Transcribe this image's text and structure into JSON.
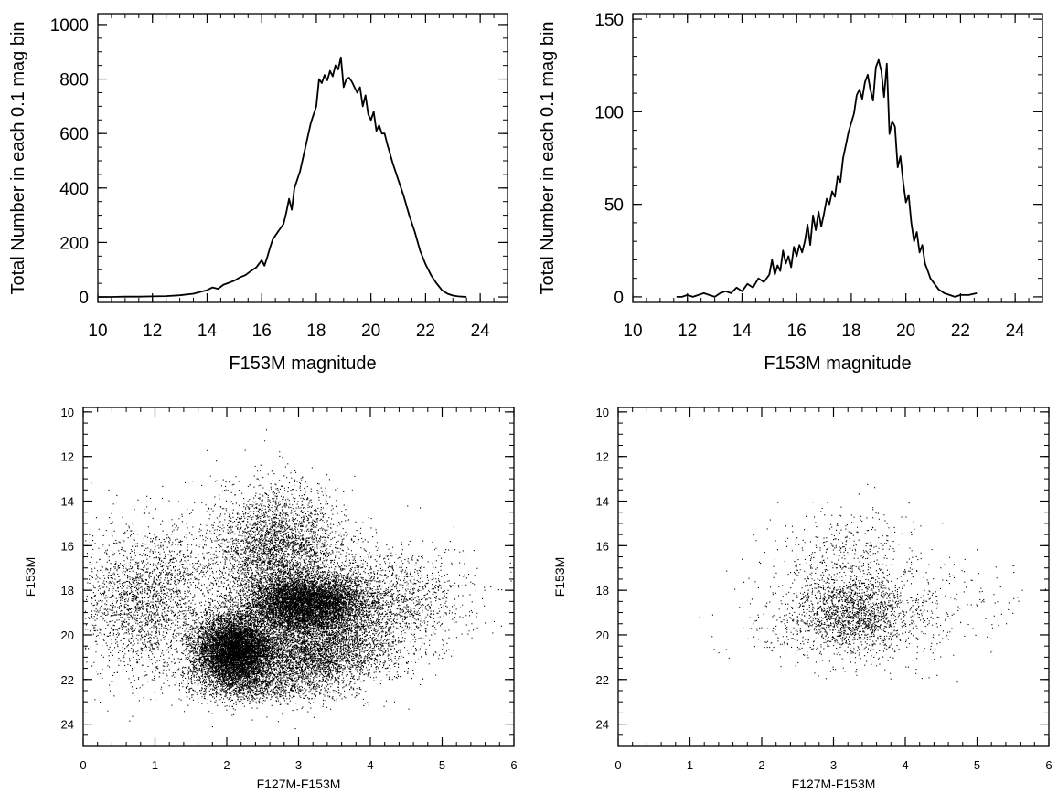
{
  "chart_data": [
    {
      "id": "hist-left",
      "type": "line",
      "title": "",
      "xlabel": "F153M magnitude",
      "ylabel": "Total Number in each 0.1 mag bin",
      "xlim": [
        10,
        25
      ],
      "ylim": [
        -20,
        1040
      ],
      "xticks": [
        10,
        12,
        14,
        16,
        18,
        20,
        22,
        24
      ],
      "yticks": [
        0,
        200,
        400,
        600,
        800,
        1000
      ],
      "x_minor_step": 0.5,
      "y_minor_step": 50,
      "grid": false,
      "series": [
        {
          "points": [
            [
              10,
              0
            ],
            [
              10.5,
              0
            ],
            [
              11,
              1
            ],
            [
              11.5,
              1
            ],
            [
              12,
              2
            ],
            [
              12.5,
              3
            ],
            [
              13,
              6
            ],
            [
              13.5,
              12
            ],
            [
              13.8,
              20
            ],
            [
              14.0,
              25
            ],
            [
              14.2,
              35
            ],
            [
              14.4,
              30
            ],
            [
              14.6,
              45
            ],
            [
              14.8,
              52
            ],
            [
              15.0,
              60
            ],
            [
              15.2,
              72
            ],
            [
              15.4,
              80
            ],
            [
              15.6,
              95
            ],
            [
              15.8,
              108
            ],
            [
              16.0,
              135
            ],
            [
              16.1,
              115
            ],
            [
              16.2,
              145
            ],
            [
              16.3,
              180
            ],
            [
              16.4,
              210
            ],
            [
              16.6,
              240
            ],
            [
              16.8,
              268
            ],
            [
              16.9,
              310
            ],
            [
              17.0,
              360
            ],
            [
              17.1,
              320
            ],
            [
              17.2,
              400
            ],
            [
              17.4,
              460
            ],
            [
              17.6,
              550
            ],
            [
              17.8,
              640
            ],
            [
              18.0,
              700
            ],
            [
              18.1,
              800
            ],
            [
              18.2,
              785
            ],
            [
              18.3,
              815
            ],
            [
              18.4,
              795
            ],
            [
              18.5,
              830
            ],
            [
              18.6,
              810
            ],
            [
              18.7,
              850
            ],
            [
              18.8,
              835
            ],
            [
              18.9,
              880
            ],
            [
              19.0,
              770
            ],
            [
              19.1,
              800
            ],
            [
              19.2,
              805
            ],
            [
              19.3,
              790
            ],
            [
              19.4,
              770
            ],
            [
              19.5,
              750
            ],
            [
              19.6,
              770
            ],
            [
              19.7,
              700
            ],
            [
              19.8,
              740
            ],
            [
              19.9,
              670
            ],
            [
              20.0,
              650
            ],
            [
              20.1,
              680
            ],
            [
              20.2,
              610
            ],
            [
              20.3,
              630
            ],
            [
              20.4,
              600
            ],
            [
              20.5,
              600
            ],
            [
              20.6,
              560
            ],
            [
              20.8,
              490
            ],
            [
              21.0,
              430
            ],
            [
              21.2,
              370
            ],
            [
              21.4,
              300
            ],
            [
              21.6,
              240
            ],
            [
              21.8,
              170
            ],
            [
              22.0,
              120
            ],
            [
              22.2,
              80
            ],
            [
              22.4,
              50
            ],
            [
              22.6,
              25
            ],
            [
              22.8,
              12
            ],
            [
              23.0,
              5
            ],
            [
              23.2,
              2
            ],
            [
              23.5,
              0
            ]
          ]
        }
      ]
    },
    {
      "id": "hist-right",
      "type": "line",
      "title": "",
      "xlabel": "F153M magnitude",
      "ylabel": "Total Number in each 0.1 mag bin",
      "xlim": [
        10,
        25
      ],
      "ylim": [
        -3,
        153
      ],
      "xticks": [
        10,
        12,
        14,
        16,
        18,
        20,
        22,
        24
      ],
      "yticks": [
        0,
        50,
        100,
        150
      ],
      "x_minor_step": 0.5,
      "y_minor_step": 10,
      "grid": false,
      "series": [
        {
          "points": [
            [
              11.6,
              0
            ],
            [
              11.8,
              0
            ],
            [
              12.0,
              1
            ],
            [
              12.2,
              0
            ],
            [
              12.4,
              1
            ],
            [
              12.6,
              2
            ],
            [
              12.8,
              1
            ],
            [
              13.0,
              0
            ],
            [
              13.2,
              2
            ],
            [
              13.4,
              3
            ],
            [
              13.6,
              2
            ],
            [
              13.8,
              5
            ],
            [
              14.0,
              3
            ],
            [
              14.2,
              7
            ],
            [
              14.4,
              5
            ],
            [
              14.6,
              10
            ],
            [
              14.8,
              8
            ],
            [
              15.0,
              12
            ],
            [
              15.1,
              20
            ],
            [
              15.2,
              12
            ],
            [
              15.3,
              17
            ],
            [
              15.4,
              14
            ],
            [
              15.5,
              25
            ],
            [
              15.6,
              18
            ],
            [
              15.7,
              22
            ],
            [
              15.8,
              16
            ],
            [
              15.9,
              27
            ],
            [
              16.0,
              22
            ],
            [
              16.1,
              28
            ],
            [
              16.2,
              24
            ],
            [
              16.3,
              30
            ],
            [
              16.4,
              39
            ],
            [
              16.5,
              28
            ],
            [
              16.6,
              44
            ],
            [
              16.7,
              36
            ],
            [
              16.8,
              46
            ],
            [
              16.9,
              38
            ],
            [
              17.0,
              45
            ],
            [
              17.1,
              53
            ],
            [
              17.2,
              50
            ],
            [
              17.3,
              57
            ],
            [
              17.4,
              54
            ],
            [
              17.5,
              65
            ],
            [
              17.6,
              62
            ],
            [
              17.7,
              75
            ],
            [
              17.8,
              82
            ],
            [
              17.9,
              89
            ],
            [
              18.0,
              94
            ],
            [
              18.1,
              99
            ],
            [
              18.2,
              109
            ],
            [
              18.3,
              112
            ],
            [
              18.4,
              107
            ],
            [
              18.5,
              116
            ],
            [
              18.6,
              120
            ],
            [
              18.7,
              112
            ],
            [
              18.8,
              106
            ],
            [
              18.9,
              124
            ],
            [
              19.0,
              128
            ],
            [
              19.1,
              122
            ],
            [
              19.2,
              108
            ],
            [
              19.3,
              126
            ],
            [
              19.4,
              88
            ],
            [
              19.5,
              95
            ],
            [
              19.6,
              92
            ],
            [
              19.7,
              70
            ],
            [
              19.8,
              76
            ],
            [
              19.9,
              62
            ],
            [
              20.0,
              51
            ],
            [
              20.1,
              55
            ],
            [
              20.2,
              40
            ],
            [
              20.3,
              30
            ],
            [
              20.4,
              35
            ],
            [
              20.5,
              24
            ],
            [
              20.6,
              28
            ],
            [
              20.7,
              18
            ],
            [
              20.8,
              14
            ],
            [
              20.9,
              10
            ],
            [
              21.0,
              8
            ],
            [
              21.2,
              4
            ],
            [
              21.4,
              2
            ],
            [
              21.6,
              1
            ],
            [
              21.8,
              0
            ],
            [
              22.0,
              1
            ],
            [
              22.3,
              1
            ],
            [
              22.6,
              2
            ]
          ]
        }
      ]
    },
    {
      "id": "cmd-left",
      "type": "scatter",
      "title": "",
      "xlabel": "F127M-F153M",
      "ylabel": "F153M",
      "xlim": [
        0,
        6
      ],
      "ylim": [
        25,
        9.8
      ],
      "y_inverted": true,
      "xticks": [
        0,
        1,
        2,
        3,
        4,
        5,
        6
      ],
      "yticks": [
        10,
        12,
        14,
        16,
        18,
        20,
        22,
        24
      ],
      "x_minor_step": 0.2,
      "y_minor_step": 0.5,
      "grid": false,
      "point_count_approx": 26000,
      "point_distribution": [
        {
          "center_color": 2.1,
          "center_mag": 20.7,
          "sigma_color": 0.28,
          "sigma_mag": 0.8,
          "weight": 0.28
        },
        {
          "center_color": 3.1,
          "center_mag": 18.6,
          "sigma_color": 0.42,
          "sigma_mag": 0.65,
          "weight": 0.26
        },
        {
          "center_color": 2.7,
          "center_mag": 16.2,
          "sigma_color": 0.45,
          "sigma_mag": 1.4,
          "weight": 0.13
        },
        {
          "center_color": 0.9,
          "center_mag": 18.4,
          "sigma_color": 0.5,
          "sigma_mag": 1.6,
          "weight": 0.09
        },
        {
          "center_color": 3.2,
          "center_mag": 20.7,
          "sigma_color": 0.55,
          "sigma_mag": 0.85,
          "weight": 0.14
        },
        {
          "center_color": 4.2,
          "center_mag": 18.5,
          "sigma_color": 0.6,
          "sigma_mag": 1.2,
          "weight": 0.06
        },
        {
          "center_color": 2.5,
          "center_mag": 22.2,
          "sigma_color": 0.55,
          "sigma_mag": 0.45,
          "weight": 0.04
        }
      ]
    },
    {
      "id": "cmd-right",
      "type": "scatter",
      "title": "",
      "xlabel": "F127M-F153M",
      "ylabel": "F153M",
      "xlim": [
        0,
        6
      ],
      "ylim": [
        25,
        9.8
      ],
      "y_inverted": true,
      "xticks": [
        0,
        1,
        2,
        3,
        4,
        5,
        6
      ],
      "yticks": [
        10,
        12,
        14,
        16,
        18,
        20,
        22,
        24
      ],
      "x_minor_step": 0.2,
      "y_minor_step": 0.5,
      "grid": false,
      "point_count_approx": 2600,
      "point_distribution": [
        {
          "center_color": 3.25,
          "center_mag": 19.0,
          "sigma_color": 0.4,
          "sigma_mag": 0.75,
          "weight": 0.5
        },
        {
          "center_color": 3.2,
          "center_mag": 17.0,
          "sigma_color": 0.55,
          "sigma_mag": 1.3,
          "weight": 0.25
        },
        {
          "center_color": 3.3,
          "center_mag": 19.8,
          "sigma_color": 0.75,
          "sigma_mag": 0.9,
          "weight": 0.2
        },
        {
          "center_color": 4.6,
          "center_mag": 18.5,
          "sigma_color": 0.7,
          "sigma_mag": 0.9,
          "weight": 0.05
        }
      ]
    }
  ]
}
